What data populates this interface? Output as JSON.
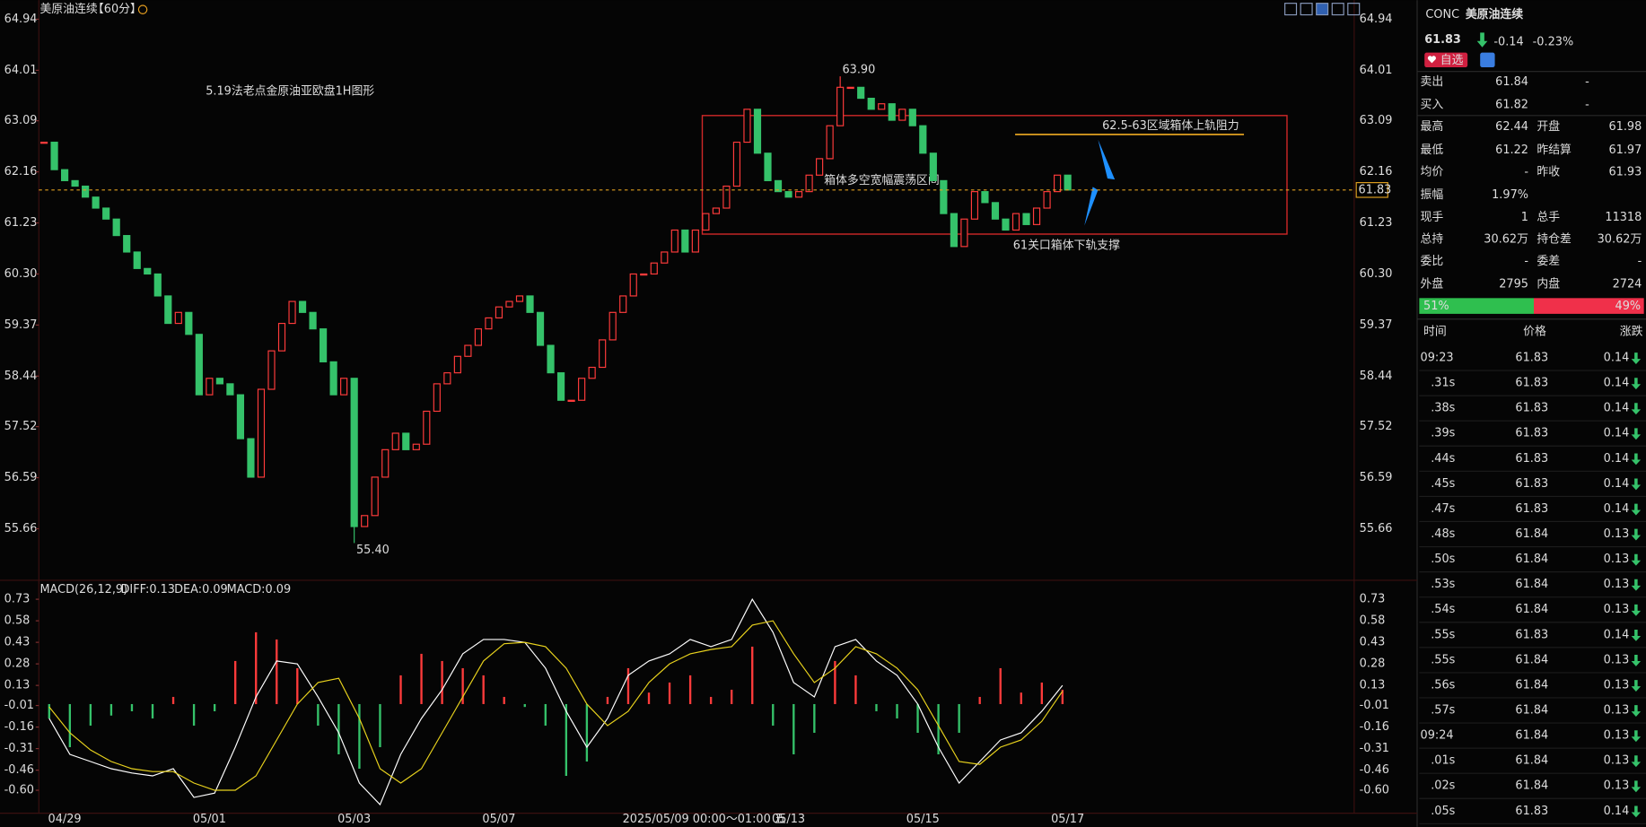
{
  "header": {
    "symbol": "美原油连续",
    "period": "【60分】"
  },
  "chart_data": [
    {
      "type": "candlestick",
      "title": "5.19法老点金原油亚欧盘1H图形",
      "categories": [
        null,
        null,
        "04/29",
        null,
        null,
        null,
        null,
        null,
        null,
        null,
        null,
        null,
        null,
        null,
        null,
        null,
        "05/01",
        null,
        null,
        null,
        null,
        null,
        null,
        null,
        null,
        null,
        null,
        null,
        null,
        null,
        "05/03",
        null,
        null,
        null,
        null,
        null,
        null,
        null,
        null,
        null,
        null,
        null,
        null,
        null,
        "05/07",
        null,
        null,
        null,
        null,
        null,
        null,
        null,
        null,
        null,
        null,
        null,
        null,
        null,
        null,
        null,
        null,
        null,
        null,
        null,
        null,
        null,
        null,
        null,
        null,
        null,
        null,
        null,
        "05/13",
        null,
        null,
        null,
        null,
        null,
        null,
        null,
        null,
        null,
        null,
        null,
        null,
        "05/15",
        null,
        null,
        null,
        null,
        null,
        null,
        null,
        null,
        null,
        null,
        null,
        null,
        null,
        "05/17"
      ],
      "closes": [
        62.7,
        62.2,
        62.0,
        61.9,
        61.7,
        61.5,
        61.3,
        61.0,
        60.7,
        60.4,
        60.3,
        59.9,
        59.4,
        59.6,
        59.2,
        58.1,
        58.4,
        58.3,
        58.1,
        57.3,
        56.6,
        58.2,
        58.9,
        59.4,
        59.8,
        59.6,
        59.3,
        58.7,
        58.1,
        58.4,
        55.7,
        55.9,
        56.6,
        57.1,
        57.4,
        57.1,
        57.2,
        57.8,
        58.3,
        58.5,
        58.8,
        59.0,
        59.3,
        59.5,
        59.7,
        59.8,
        59.9,
        59.6,
        59.0,
        58.5,
        58.0,
        58.0,
        58.4,
        58.6,
        59.1,
        59.6,
        59.9,
        60.3,
        60.3,
        60.5,
        60.7,
        61.1,
        60.7,
        61.1,
        61.4,
        61.5,
        61.9,
        62.7,
        63.3,
        62.5,
        62.0,
        61.8,
        61.7,
        61.8,
        62.1,
        62.4,
        63.0,
        63.7,
        63.7,
        63.5,
        63.3,
        63.4,
        63.1,
        63.3,
        63.0,
        62.5,
        62.0,
        61.4,
        60.8,
        61.3,
        61.8,
        61.6,
        61.3,
        61.1,
        61.4,
        61.2,
        61.5,
        61.8,
        62.1,
        61.83
      ],
      "up_color": "#ff3b3b",
      "down_color": "#35c26a",
      "high": {
        "value": 63.9,
        "label": "63.90"
      },
      "low": {
        "value": 55.4,
        "label": "55.40"
      },
      "last_price": 61.83,
      "ylim": [
        54.74,
        65.23
      ],
      "yticks": [
        64.94,
        64.01,
        63.09,
        62.16,
        61.23,
        {
          "value": 60.3,
          "label": "60.30"
        },
        59.37,
        58.44,
        57.52,
        56.59,
        55.66
      ],
      "grid": false,
      "cursor_label": "2025/05/09 00:00～01:00 五",
      "annotations": {
        "box": "箱体多空宽幅震荡区间",
        "resistance": "62.5-63区域箱体上轨阻力",
        "support": "61关口箱体下轨支撑"
      }
    },
    {
      "type": "macd",
      "title": "MACD(26,12,9)",
      "ylim": [
        -0.76,
        0.84
      ],
      "yticks": [
        0.73,
        0.58,
        0.43,
        0.28,
        0.13,
        -0.01,
        -0.16,
        -0.31,
        -0.46,
        {
          "value": -0.6,
          "label": "-0.60"
        }
      ],
      "series": [
        {
          "name": "DIFF:0.13",
          "color": "#ffffff",
          "values": [
            -0.1,
            -0.35,
            -0.4,
            -0.45,
            -0.48,
            -0.5,
            -0.45,
            -0.65,
            -0.62,
            -0.3,
            0.05,
            0.3,
            0.28,
            0.05,
            -0.2,
            -0.55,
            -0.7,
            -0.35,
            -0.1,
            0.1,
            0.35,
            0.45,
            0.45,
            0.43,
            0.25,
            -0.05,
            -0.3,
            -0.1,
            0.2,
            0.3,
            0.35,
            0.45,
            0.4,
            0.45,
            0.73,
            0.5,
            0.15,
            0.05,
            0.4,
            0.45,
            0.3,
            0.2,
            0.0,
            -0.3,
            -0.55,
            -0.4,
            -0.25,
            -0.2,
            -0.05,
            0.13
          ]
        },
        {
          "name": "DEA:0.09",
          "color": "#e8d21d",
          "values": [
            -0.02,
            -0.2,
            -0.32,
            -0.4,
            -0.45,
            -0.47,
            -0.47,
            -0.55,
            -0.6,
            -0.6,
            -0.5,
            -0.25,
            0.0,
            0.15,
            0.18,
            -0.1,
            -0.45,
            -0.55,
            -0.45,
            -0.2,
            0.05,
            0.3,
            0.42,
            0.43,
            0.4,
            0.25,
            0.0,
            -0.15,
            -0.05,
            0.15,
            0.28,
            0.35,
            0.38,
            0.4,
            0.55,
            0.58,
            0.35,
            0.15,
            0.25,
            0.4,
            0.35,
            0.25,
            0.1,
            -0.15,
            -0.4,
            -0.42,
            -0.3,
            -0.25,
            -0.12,
            0.09
          ]
        }
      ],
      "histogram": {
        "name": "MACD:0.09",
        "color": "#d040d0",
        "up_color": "#ff3b3b",
        "down_color": "#35c26a",
        "values": [
          -0.1,
          -0.3,
          -0.15,
          -0.08,
          -0.05,
          -0.1,
          0.05,
          -0.15,
          -0.05,
          0.3,
          0.5,
          0.45,
          0.25,
          -0.15,
          -0.35,
          -0.45,
          -0.3,
          0.2,
          0.35,
          0.3,
          0.25,
          0.2,
          0.05,
          -0.02,
          -0.15,
          -0.5,
          -0.4,
          0.05,
          0.25,
          0.08,
          0.15,
          0.2,
          0.05,
          0.1,
          0.4,
          -0.15,
          -0.35,
          -0.2,
          0.3,
          0.2,
          -0.05,
          -0.1,
          -0.2,
          -0.35,
          -0.2,
          0.05,
          0.25,
          0.08,
          0.15,
          0.1
        ]
      }
    }
  ],
  "quote": {
    "code": "CONC",
    "name": "美原油连续",
    "price": "61.83",
    "change": "-0.14",
    "change_pct": "-0.23%",
    "watch": "自选",
    "rows": [
      [
        "卖出",
        "61.84",
        "-"
      ],
      [
        "买入",
        "61.82",
        "-"
      ],
      [
        "最高",
        "62.44",
        "开盘",
        "61.98"
      ],
      [
        "最低",
        "61.22",
        "昨结算",
        "61.97"
      ],
      [
        "均价",
        "-",
        "昨收",
        "61.93"
      ],
      [
        "振幅",
        "1.97%"
      ],
      [
        "现手",
        "1",
        "总手",
        "11318"
      ],
      [
        "总持",
        "30.62万",
        "持仓差",
        "30.62万"
      ],
      [
        "委比",
        "-",
        "委差",
        "-"
      ],
      [
        "外盘",
        "2795",
        "内盘",
        "2724"
      ]
    ],
    "buy_sell": [
      {
        "value": 51,
        "label": "51%",
        "color": "#2fbf4f"
      },
      {
        "value": 49,
        "label": "49%",
        "color": "#f0304a"
      }
    ],
    "ticks_header": [
      "时间",
      "价格",
      "涨跌"
    ],
    "ticks": [
      [
        "09:23",
        "61.83",
        "0.14"
      ],
      [
        ".31s",
        "61.83",
        "0.14"
      ],
      [
        ".38s",
        "61.83",
        "0.14"
      ],
      [
        ".39s",
        "61.83",
        "0.14"
      ],
      [
        ".44s",
        "61.83",
        "0.14"
      ],
      [
        ".45s",
        "61.83",
        "0.14"
      ],
      [
        ".47s",
        "61.83",
        "0.14"
      ],
      [
        ".48s",
        "61.84",
        "0.13"
      ],
      [
        ".50s",
        "61.84",
        "0.13"
      ],
      [
        ".53s",
        "61.84",
        "0.13"
      ],
      [
        ".54s",
        "61.84",
        "0.13"
      ],
      [
        ".55s",
        "61.83",
        "0.14"
      ],
      [
        ".55s",
        "61.84",
        "0.13"
      ],
      [
        ".56s",
        "61.84",
        "0.13"
      ],
      [
        ".57s",
        "61.84",
        "0.13"
      ],
      [
        "09:24",
        "61.84",
        "0.13"
      ],
      [
        ".01s",
        "61.84",
        "0.13"
      ],
      [
        ".02s",
        "61.84",
        "0.13"
      ],
      [
        ".05s",
        "61.83",
        "0.14"
      ]
    ]
  }
}
